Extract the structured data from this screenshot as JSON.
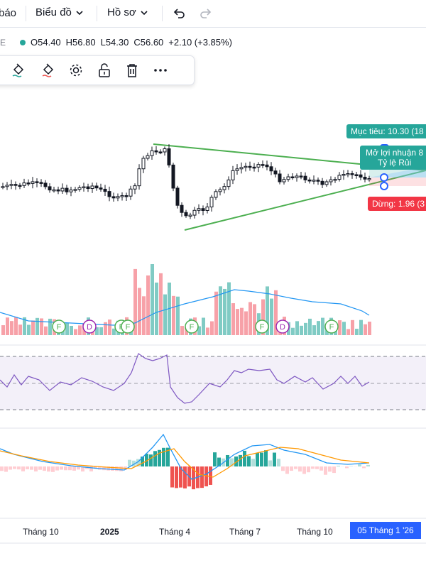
{
  "header": {
    "cut_label": "báo",
    "menu_chart": "Biểu đồ",
    "menu_profile": "Hồ sơ"
  },
  "ohlc": {
    "open": "O54.40",
    "high": "H56.80",
    "low": "L54.30",
    "close": "C56.60",
    "change": "+2.10 (+3.85%)"
  },
  "drawing_toolbar": {
    "icons": [
      "paint-bucket-icon",
      "paint-bucket-red-icon",
      "gear-icon",
      "unlock-icon",
      "trash-icon",
      "more-icon"
    ]
  },
  "position_tool": {
    "target_label": "Mục tiêu: 10.30 (18",
    "open_pnl_line1": "Mở lợi nhuận 8",
    "open_pnl_line2": "Tỷ lệ Rủi",
    "stop_label": "Dừng: 1.96 (3"
  },
  "event_markers": [
    "F",
    "D",
    "F",
    "F",
    "F",
    "F",
    "D",
    "F"
  ],
  "x_axis": {
    "labels": [
      "Tháng 10",
      "2025",
      "Tháng 4",
      "Tháng 7",
      "Tháng 10"
    ],
    "cursor_date": "05 Tháng 1 '26"
  },
  "colors": {
    "up": "#26a69a",
    "down": "#ef5350",
    "triangle": "#4caf50",
    "rsi_line": "#7e57c2",
    "macd_line": "#2196f3",
    "signal_line": "#ff9800",
    "target": "#26a69a",
    "stop": "#f23645"
  }
}
